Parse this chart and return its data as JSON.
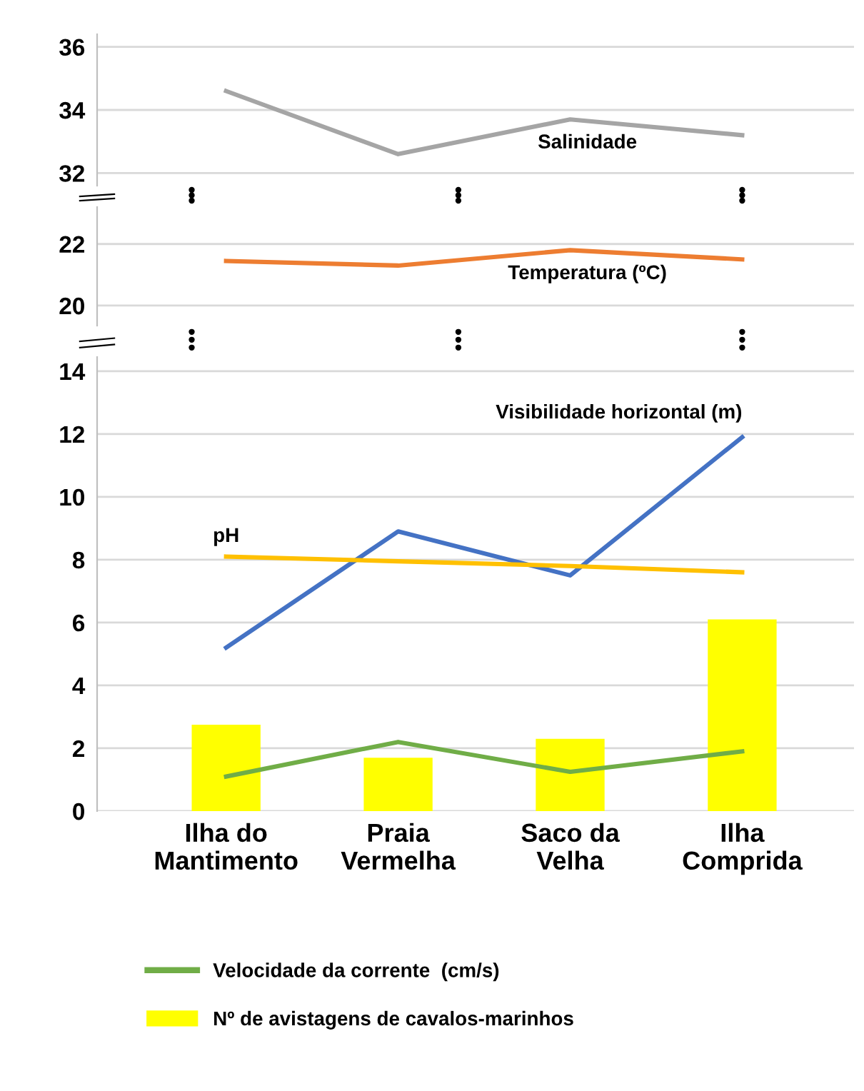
{
  "chart_data": [
    {
      "type": "line",
      "ylim": [
        31.6,
        36.4
      ],
      "yticks": [
        32,
        34,
        36
      ],
      "grid": "y",
      "tick_labels": "y",
      "series": [
        {
          "name": "Salinidade",
          "color": "#a5a5a5",
          "values": [
            34.6,
            32.6,
            33.7,
            33.2
          ]
        }
      ]
    },
    {
      "type": "line",
      "ylim": [
        19.35,
        23.2
      ],
      "yticks": [
        20,
        22
      ],
      "grid": "y",
      "tick_labels": "y",
      "series": [
        {
          "name": "Temperatura (ºC)",
          "color": "#ed7d31",
          "values": [
            21.45,
            21.3,
            21.8,
            21.5
          ]
        }
      ]
    },
    {
      "type": "line",
      "categories": [
        "Ilha do\nMantimento",
        "Praia\nVermelha",
        "Saco da\nVelha",
        "Ilha\nComprida"
      ],
      "ylim": [
        0,
        14.45
      ],
      "yticks": [
        0,
        2,
        4,
        6,
        8,
        10,
        12,
        14
      ],
      "grid": "y",
      "legend": "bottom",
      "series": [
        {
          "name": "Velocidade da corrente  (cm/s)",
          "color": "#70ad47",
          "values": [
            1.1,
            2.2,
            1.25,
            1.9
          ]
        },
        {
          "name": "Nº de avistagens de cavalos-marinhos",
          "type": "bar",
          "color": "#ffff00",
          "values": [
            2.75,
            1.7,
            2.3,
            6.1
          ]
        },
        {
          "name": "Visibilidade horizontal (m)",
          "color": "#4472c4",
          "values": [
            5.2,
            8.9,
            7.5,
            11.9
          ]
        },
        {
          "name": "pH",
          "color": "#ffc000",
          "values": [
            8.1,
            7.95,
            7.8,
            7.6
          ]
        }
      ]
    }
  ]
}
